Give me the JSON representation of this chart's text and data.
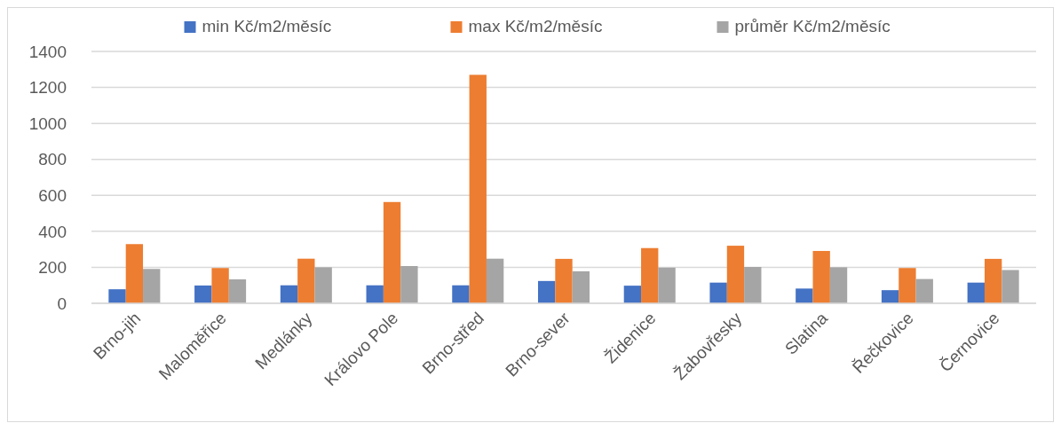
{
  "chart_data": {
    "type": "bar",
    "categories": [
      "Brno-jih",
      "Maloměřice",
      "Medlánky",
      "Královo Pole",
      "Brno-střed",
      "Brno-sever",
      "Židenice",
      "Žabovřesky",
      "Slatina",
      "Řečkovice",
      "Černovice"
    ],
    "series": [
      {
        "name": "min Kč/m2/měsíc",
        "color": "#4472c4",
        "values": [
          78,
          99,
          100,
          100,
          100,
          124,
          98,
          115,
          82,
          73,
          115
        ]
      },
      {
        "name": "max Kč/m2/měsíc",
        "color": "#ed7d31",
        "values": [
          329,
          196,
          248,
          563,
          1270,
          247,
          307,
          320,
          291,
          196,
          247
        ]
      },
      {
        "name": "průměr Kč/m2/měsíc",
        "color": "#a5a5a5",
        "values": [
          191,
          133,
          200,
          207,
          248,
          178,
          198,
          202,
          200,
          135,
          185
        ]
      }
    ],
    "ylim": [
      0,
      1400
    ],
    "yticks": [
      0,
      200,
      400,
      600,
      800,
      1000,
      1200,
      1400
    ],
    "grid": "y",
    "legend": "top"
  }
}
